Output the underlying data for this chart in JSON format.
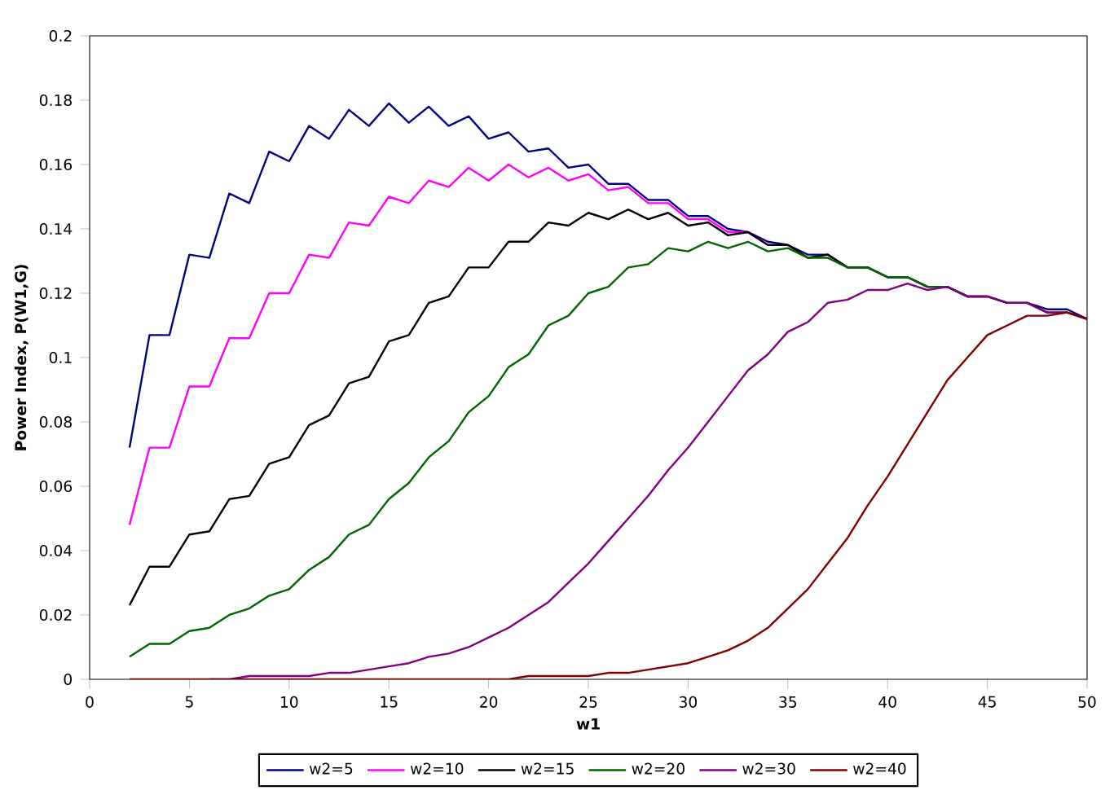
{
  "chart_data": {
    "type": "line",
    "xlabel": "w1",
    "ylabel": "Power Index, P(W1,G)",
    "x": [
      2,
      3,
      4,
      5,
      6,
      7,
      8,
      9,
      10,
      11,
      12,
      13,
      14,
      15,
      16,
      17,
      18,
      19,
      20,
      21,
      22,
      23,
      24,
      25,
      26,
      27,
      28,
      29,
      30,
      31,
      32,
      33,
      34,
      35,
      36,
      37,
      38,
      39,
      40,
      41,
      42,
      43,
      44,
      45,
      46,
      47,
      48,
      49,
      50
    ],
    "xlim": [
      0,
      50
    ],
    "xticks": [
      0,
      5,
      10,
      15,
      20,
      25,
      30,
      35,
      40,
      45,
      50
    ],
    "ylim": [
      0,
      0.2
    ],
    "yticks": [
      0,
      0.02,
      0.04,
      0.06,
      0.08,
      0.1,
      0.12,
      0.14,
      0.16,
      0.18,
      0.2
    ],
    "grid": false,
    "legend": "bottom",
    "marker": "none",
    "line_style": "solid",
    "series": [
      {
        "name": "w2=5",
        "color": "#000080",
        "values": [
          0.072,
          0.107,
          0.107,
          0.132,
          0.131,
          0.151,
          0.148,
          0.164,
          0.161,
          0.172,
          0.168,
          0.177,
          0.172,
          0.179,
          0.173,
          0.178,
          0.172,
          0.175,
          0.168,
          0.17,
          0.164,
          0.165,
          0.159,
          0.16,
          0.154,
          0.154,
          0.149,
          0.149,
          0.144,
          0.144,
          0.14,
          0.139,
          0.136,
          0.135,
          0.132,
          0.132,
          0.128,
          0.128,
          0.125,
          0.125,
          0.122,
          0.122,
          0.119,
          0.119,
          0.117,
          0.117,
          0.115,
          0.115,
          0.112
        ]
      },
      {
        "name": "w2=10",
        "color": "#ff00ff",
        "values": [
          0.048,
          0.072,
          0.072,
          0.091,
          0.091,
          0.106,
          0.106,
          0.12,
          0.12,
          0.132,
          0.131,
          0.142,
          0.141,
          0.15,
          0.148,
          0.155,
          0.153,
          0.159,
          0.155,
          0.16,
          0.156,
          0.159,
          0.155,
          0.157,
          0.152,
          0.153,
          0.148,
          0.148,
          0.143,
          0.143,
          0.139,
          0.139,
          0.135,
          null,
          null,
          null,
          null,
          null,
          null,
          null,
          null,
          null,
          null,
          null,
          null,
          null,
          null,
          null,
          null
        ]
      },
      {
        "name": "w2=15",
        "color": "#000000",
        "values": [
          0.023,
          0.035,
          0.035,
          0.045,
          0.046,
          0.056,
          0.057,
          0.067,
          0.069,
          0.079,
          0.082,
          0.092,
          0.094,
          0.105,
          0.107,
          0.117,
          0.119,
          0.128,
          0.128,
          0.136,
          0.136,
          0.142,
          0.141,
          0.145,
          0.143,
          0.146,
          0.143,
          0.145,
          0.141,
          0.142,
          0.138,
          0.139,
          0.135,
          0.135,
          0.131,
          0.132,
          0.128,
          0.128,
          0.125,
          0.125,
          0.122,
          0.122,
          0.119,
          0.119,
          0.117,
          0.117,
          0.114,
          0.114,
          0.112
        ]
      },
      {
        "name": "w2=20",
        "color": "#006400",
        "values": [
          0.007,
          0.011,
          0.011,
          0.015,
          0.016,
          0.02,
          0.022,
          0.026,
          0.028,
          0.034,
          0.038,
          0.045,
          0.048,
          0.056,
          0.061,
          0.069,
          0.074,
          0.083,
          0.088,
          0.097,
          0.101,
          0.11,
          0.113,
          0.12,
          0.122,
          0.128,
          0.129,
          0.134,
          0.133,
          0.136,
          0.134,
          0.136,
          0.133,
          0.134,
          0.131,
          0.131,
          0.128,
          0.128,
          0.125,
          0.125,
          0.122,
          0.122,
          0.119,
          null,
          null,
          null,
          null,
          null,
          null
        ]
      },
      {
        "name": "w2=30",
        "color": "#800080",
        "values": [
          null,
          null,
          null,
          null,
          0.0,
          0.0,
          0.001,
          0.001,
          0.001,
          0.001,
          0.002,
          0.002,
          0.003,
          0.004,
          0.005,
          0.007,
          0.008,
          0.01,
          0.013,
          0.016,
          0.02,
          0.024,
          0.03,
          0.036,
          0.043,
          0.05,
          0.057,
          0.065,
          0.072,
          0.08,
          0.088,
          0.096,
          0.101,
          0.108,
          0.111,
          0.117,
          0.118,
          0.121,
          0.121,
          0.123,
          0.121,
          0.122,
          0.119,
          0.119,
          0.117,
          0.117,
          0.114,
          0.114,
          0.112
        ]
      },
      {
        "name": "w2=40",
        "color": "#800000",
        "values": [
          0.0,
          0.0,
          0.0,
          0.0,
          0.0,
          0.0,
          0.0,
          0.0,
          0.0,
          0.0,
          0.0,
          0.0,
          0.0,
          0.0,
          0.0,
          0.0,
          0.0,
          0.0,
          0.0,
          0.0,
          0.001,
          0.001,
          0.001,
          0.001,
          0.002,
          0.002,
          0.003,
          0.004,
          0.005,
          0.007,
          0.009,
          0.012,
          0.016,
          0.022,
          0.028,
          0.036,
          0.044,
          0.054,
          0.063,
          0.073,
          0.083,
          0.093,
          0.1,
          0.107,
          0.11,
          0.113,
          0.113,
          0.114,
          0.112
        ]
      }
    ]
  }
}
